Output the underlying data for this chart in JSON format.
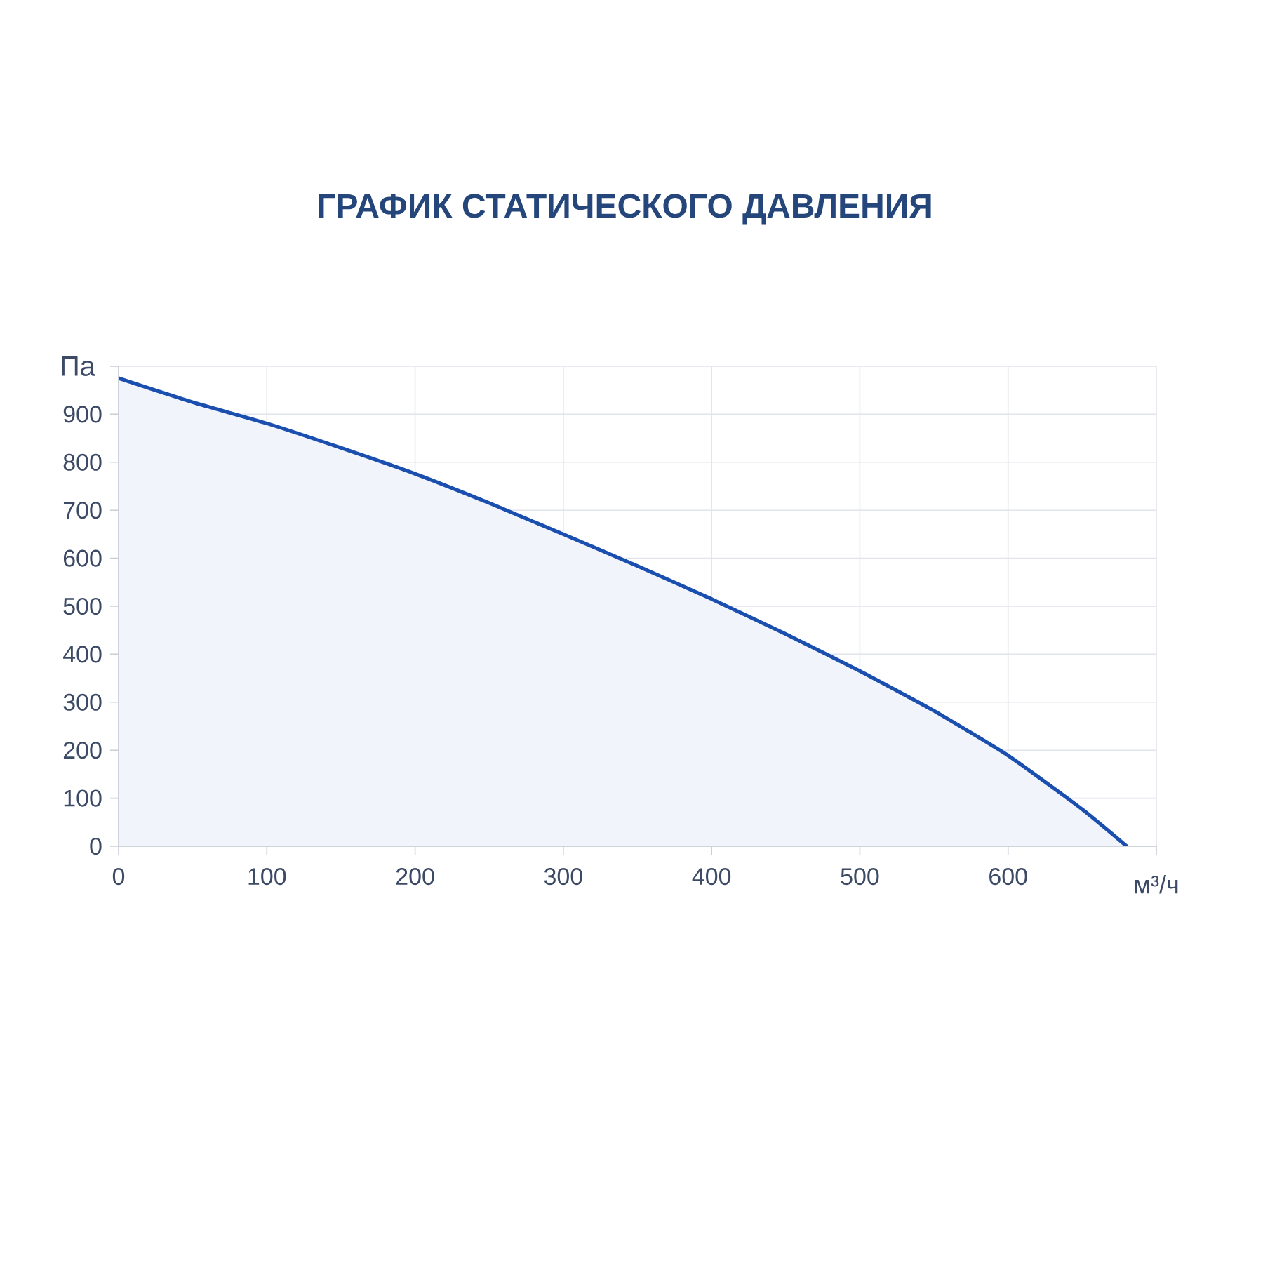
{
  "chart_data": {
    "type": "area",
    "title": "ГРАФИК СТАТИЧЕСКОГО ДАВЛЕНИЯ",
    "xlabel": "м³/ч",
    "ylabel": "Па",
    "x": [
      0,
      50,
      100,
      150,
      200,
      250,
      300,
      350,
      400,
      450,
      500,
      550,
      600,
      650,
      680
    ],
    "series": [
      {
        "color": "#1a4fb0",
        "values": [
          975,
          925,
          881,
          830,
          776,
          715,
          650,
          584,
          515,
          442,
          365,
          282,
          189,
          77,
          0
        ]
      }
    ],
    "xlim": [
      0,
      700
    ],
    "xticks": [
      0,
      100,
      200,
      300,
      400,
      500,
      600,
      {
        "value": 700,
        "label": null
      }
    ],
    "ylim": [
      0,
      1000
    ],
    "yticks": [
      0,
      100,
      200,
      300,
      400,
      500,
      600,
      700,
      800,
      900,
      {
        "value": 1000,
        "label": null
      }
    ],
    "grid": true
  }
}
